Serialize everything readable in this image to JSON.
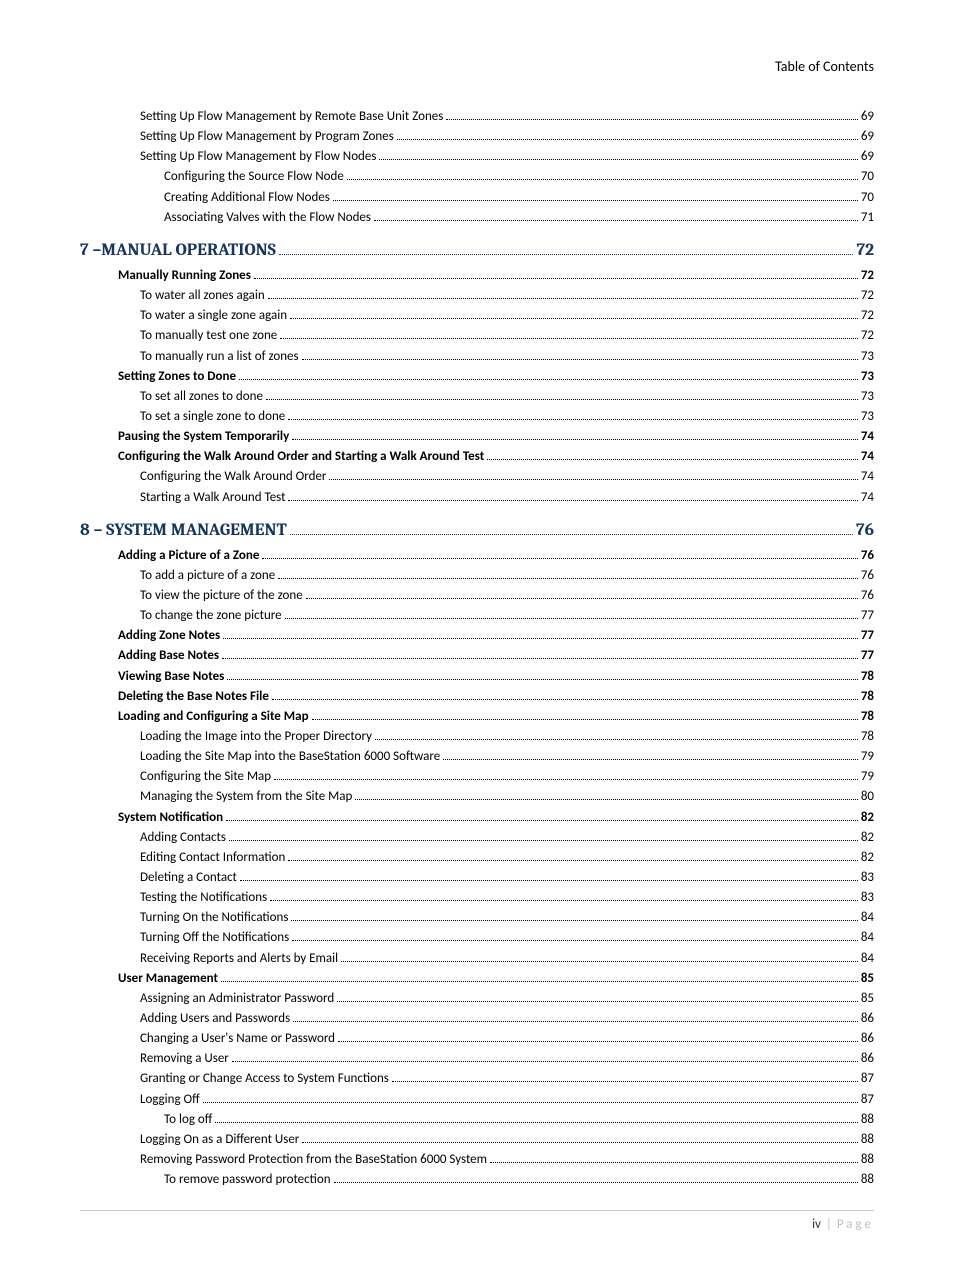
{
  "header": {
    "title": "Table of Contents"
  },
  "footer": {
    "roman": "iv",
    "sep": "|",
    "word": "Page"
  },
  "toc": [
    {
      "level": 2,
      "label": "Setting Up Flow Management by Remote Base Unit Zones",
      "page": "69"
    },
    {
      "level": 2,
      "label": "Setting Up Flow Management by Program Zones",
      "page": "69"
    },
    {
      "level": 2,
      "label": "Setting Up Flow Management by Flow Nodes",
      "page": "69"
    },
    {
      "level": 3,
      "label": "Configuring the Source Flow Node",
      "page": "70"
    },
    {
      "level": 3,
      "label": "Creating Additional Flow Nodes",
      "page": "70"
    },
    {
      "level": 3,
      "label": "Associating Valves with the Flow Nodes",
      "page": "71"
    },
    {
      "level": 0,
      "label": "7 –MANUAL OPERATIONS",
      "page": "72"
    },
    {
      "level": 1,
      "label": "Manually Running Zones",
      "page": "72"
    },
    {
      "level": 2,
      "label": "To water all zones again",
      "page": "72"
    },
    {
      "level": 2,
      "label": "To water a single zone again",
      "page": "72"
    },
    {
      "level": 2,
      "label": "To manually test one zone",
      "page": "72"
    },
    {
      "level": 2,
      "label": "To manually run a list of zones",
      "page": "73"
    },
    {
      "level": 1,
      "label": "Setting Zones to Done",
      "page": "73"
    },
    {
      "level": 2,
      "label": "To set all zones to done",
      "page": "73"
    },
    {
      "level": 2,
      "label": "To set a single zone to done",
      "page": "73"
    },
    {
      "level": 1,
      "label": "Pausing the System Temporarily",
      "page": "74"
    },
    {
      "level": 1,
      "label": "Configuring the Walk Around Order and Starting a Walk Around Test",
      "page": "74"
    },
    {
      "level": 2,
      "label": "Configuring the Walk Around Order",
      "page": "74"
    },
    {
      "level": 2,
      "label": "Starting a Walk Around Test",
      "page": "74"
    },
    {
      "level": 0,
      "label": "8 – SYSTEM MANAGEMENT",
      "page": "76"
    },
    {
      "level": 1,
      "label": "Adding a Picture of a Zone",
      "page": "76"
    },
    {
      "level": 2,
      "label": "To add a picture of a zone",
      "page": "76"
    },
    {
      "level": 2,
      "label": "To view the picture of the zone",
      "page": "76"
    },
    {
      "level": 2,
      "label": "To change the zone picture",
      "page": "77"
    },
    {
      "level": 1,
      "label": "Adding Zone Notes",
      "page": "77"
    },
    {
      "level": 1,
      "label": "Adding Base Notes",
      "page": "77"
    },
    {
      "level": 1,
      "label": "Viewing Base Notes",
      "page": "78"
    },
    {
      "level": 1,
      "label": "Deleting the Base Notes File",
      "page": "78"
    },
    {
      "level": 1,
      "label": "Loading and Configuring a Site Map",
      "page": "78"
    },
    {
      "level": 2,
      "label": "Loading the Image into the Proper Directory",
      "page": "78"
    },
    {
      "level": 2,
      "label": "Loading the Site Map into the BaseStation 6000 Software",
      "page": "79"
    },
    {
      "level": 2,
      "label": "Configuring the Site Map",
      "page": "79"
    },
    {
      "level": 2,
      "label": "Managing the System from the Site Map",
      "page": "80"
    },
    {
      "level": 1,
      "label": "System Notification",
      "page": "82"
    },
    {
      "level": 2,
      "label": "Adding Contacts",
      "page": "82"
    },
    {
      "level": 2,
      "label": "Editing Contact Information",
      "page": "82"
    },
    {
      "level": 2,
      "label": "Deleting a Contact",
      "page": "83"
    },
    {
      "level": 2,
      "label": "Testing the Notifications",
      "page": "83"
    },
    {
      "level": 2,
      "label": "Turning On the Notifications",
      "page": "84"
    },
    {
      "level": 2,
      "label": "Turning Off the Notifications",
      "page": "84"
    },
    {
      "level": 2,
      "label": "Receiving Reports and Alerts by Email",
      "page": "84"
    },
    {
      "level": 1,
      "label": "User Management",
      "page": "85"
    },
    {
      "level": 2,
      "label": "Assigning an Administrator Password",
      "page": "85"
    },
    {
      "level": 2,
      "label": "Adding Users and Passwords",
      "page": "86"
    },
    {
      "level": 2,
      "label": "Changing a User's Name or Password",
      "page": "86"
    },
    {
      "level": 2,
      "label": "Removing a User",
      "page": "86"
    },
    {
      "level": 2,
      "label": "Granting or Change Access to System Functions",
      "page": "87"
    },
    {
      "level": 2,
      "label": "Logging Off",
      "page": "87"
    },
    {
      "level": 3,
      "label": "To log off",
      "page": "88"
    },
    {
      "level": 2,
      "label": "Logging On as a Different User",
      "page": "88"
    },
    {
      "level": 2,
      "label": "Removing Password Protection from the BaseStation 6000 System",
      "page": "88"
    },
    {
      "level": 3,
      "label": "To remove password protection",
      "page": "88"
    }
  ]
}
